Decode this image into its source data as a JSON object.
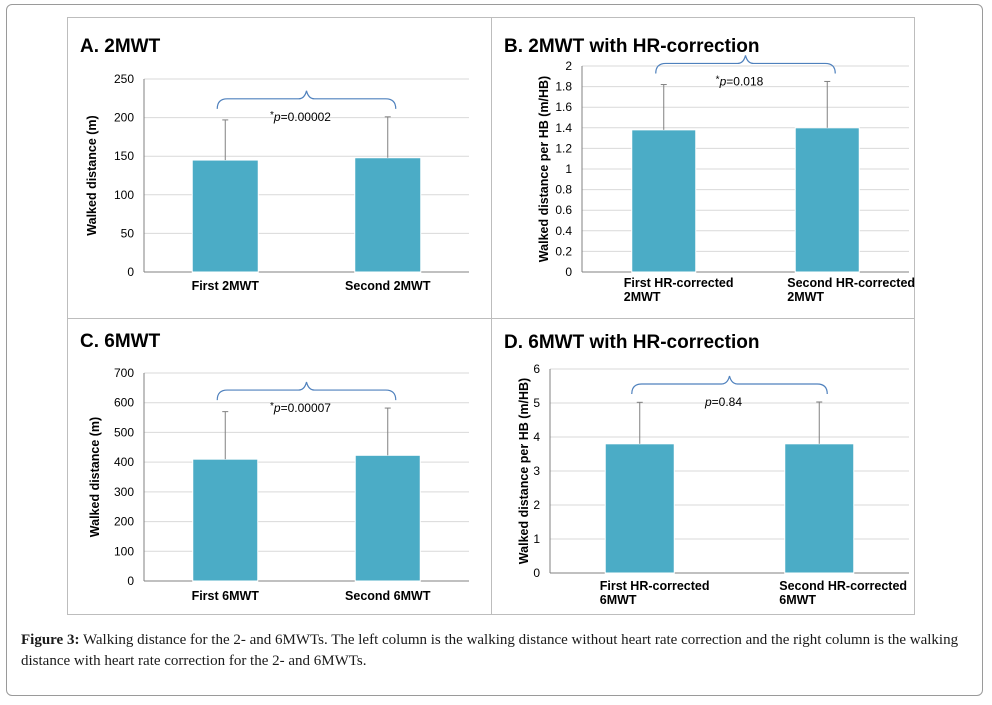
{
  "colors": {
    "bar": "#4bacc6",
    "bracket": "#4f81bd",
    "axis": "#808080",
    "grid": "#d9d9d9",
    "text": "#000000"
  },
  "chart_data": [
    {
      "type": "bar",
      "title": "A. 2MWT",
      "xlabel": "",
      "ylabel": "Walked distance (m)",
      "ylim": [
        0,
        250
      ],
      "yticks": [
        "0",
        "50",
        "100",
        "150",
        "200",
        "250"
      ],
      "categories": [
        [
          "First  2MWT"
        ],
        [
          "Second 2MWT"
        ]
      ],
      "values": [
        145,
        148
      ],
      "error_upper": [
        197,
        201
      ],
      "annotation": {
        "prefix": "*",
        "p": "p",
        "rest": "=0.00002"
      }
    },
    {
      "type": "bar",
      "title": "B. 2MWT with HR-correction",
      "xlabel": "",
      "ylabel": "Walked distance per HB (m/HB)",
      "ylim": [
        0,
        2
      ],
      "yticks": [
        "0",
        "0.2",
        "0.4",
        "0.6",
        "0.8",
        "1",
        "1.2",
        "1.4",
        "1.6",
        "1.8",
        "2"
      ],
      "categories": [
        [
          "First HR-corrected",
          "2MWT"
        ],
        [
          "Second HR-corrected",
          "2MWT"
        ]
      ],
      "values": [
        1.38,
        1.4
      ],
      "error_upper": [
        1.82,
        1.85
      ],
      "annotation": {
        "prefix": "*",
        "p": "p",
        "rest": "=0.018"
      }
    },
    {
      "type": "bar",
      "title": "C. 6MWT",
      "xlabel": "",
      "ylabel": "Walked distance (m)",
      "ylim": [
        0,
        700
      ],
      "yticks": [
        "0",
        "100",
        "200",
        "300",
        "400",
        "500",
        "600",
        "700"
      ],
      "categories": [
        [
          "First 6MWT"
        ],
        [
          "Second  6MWT"
        ]
      ],
      "values": [
        410,
        423
      ],
      "error_upper": [
        570,
        582
      ],
      "annotation": {
        "prefix": "*",
        "p": "p",
        "rest": "=0.00007"
      }
    },
    {
      "type": "bar",
      "title": "D. 6MWT with HR-correction",
      "xlabel": "",
      "ylabel": "Walked distance per HB  (m/HB)",
      "ylim": [
        0,
        6
      ],
      "yticks": [
        "0",
        "1",
        "2",
        "3",
        "4",
        "5",
        "6"
      ],
      "categories": [
        [
          "First HR-corrected",
          "6MWT"
        ],
        [
          "Second  HR-corrected",
          "6MWT"
        ]
      ],
      "values": [
        3.8,
        3.8
      ],
      "error_upper": [
        5.02,
        5.03
      ],
      "annotation": {
        "prefix": "",
        "p": "p",
        "rest": "=0.84"
      }
    }
  ],
  "caption": {
    "label": "Figure 3:",
    "text": " Walking distance for the 2- and 6MWTs. The left column is the walking distance without heart rate correction and the right column is the walking distance with heart rate correction for the 2- and 6MWTs."
  }
}
